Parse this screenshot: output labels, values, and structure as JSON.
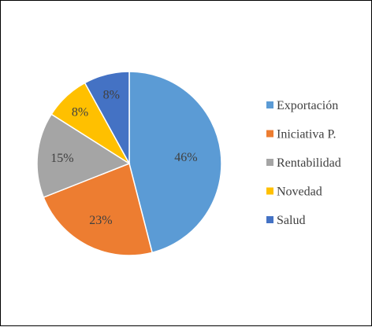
{
  "chart_data": {
    "type": "pie",
    "categories": [
      "Exportación",
      "Iniciativa P.",
      "Rentabilidad",
      "Novedad",
      "Salud"
    ],
    "values": [
      46,
      23,
      15,
      8,
      8
    ],
    "labels": [
      "46%",
      "23%",
      "15%",
      "8%",
      "8%"
    ],
    "colors": [
      "#5B9BD5",
      "#ED7D31",
      "#A5A5A5",
      "#FFC000",
      "#4472C4"
    ],
    "title": "",
    "legend_position": "right"
  }
}
